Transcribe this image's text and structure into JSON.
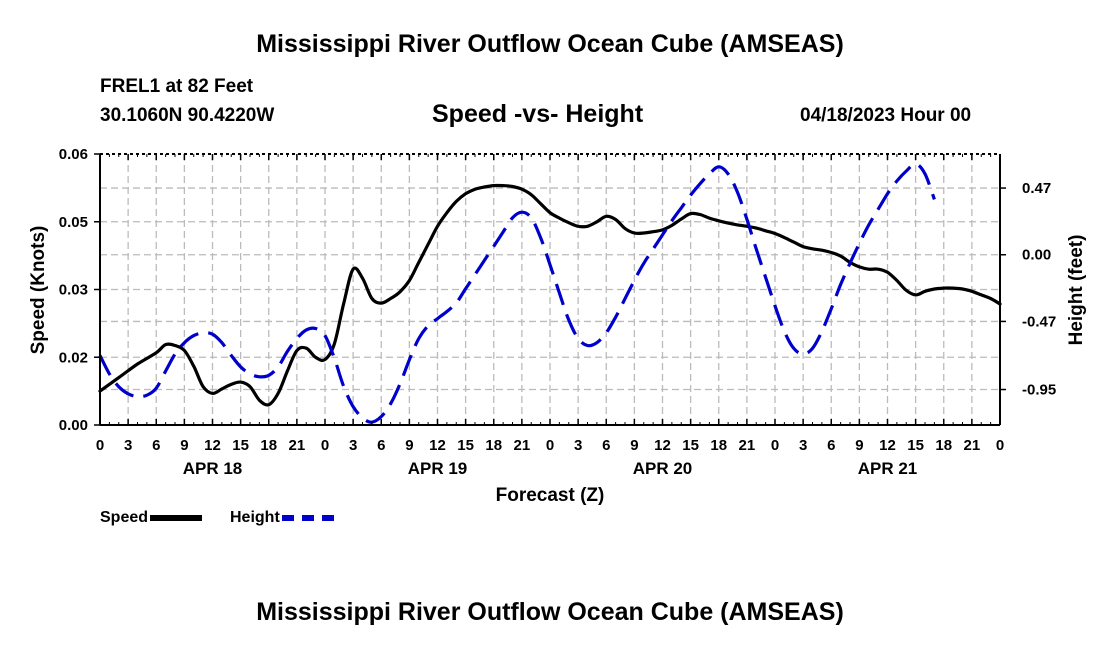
{
  "header": {
    "title": "Mississippi River Outflow Ocean Cube (AMSEAS)",
    "station": "FREL1 at 82 Feet",
    "coords": "30.1060N  90.4220W",
    "subtitle": "Speed -vs- Height",
    "datetime": "04/18/2023 Hour 00"
  },
  "footer": {
    "title": "Mississippi River Outflow Ocean Cube (AMSEAS)"
  },
  "colors": {
    "speed": "#000000",
    "height": "#0000cc",
    "grid": "#bbbbbb"
  },
  "legend": [
    {
      "label": "Speed",
      "color": "#000000"
    },
    {
      "label": "Height",
      "color": "#0000cc"
    }
  ],
  "chart_data": {
    "type": "line",
    "title": "Speed -vs- Height",
    "xlabel": "Forecast (Z)",
    "ylabel_left": "Speed (Knots)",
    "ylabel_right": "Height (feet)",
    "x_range_hours": [
      0,
      96
    ],
    "x_tick_step_hours": 3,
    "x_tick_labels": [
      "0",
      "3",
      "6",
      "9",
      "12",
      "15",
      "18",
      "21",
      "0",
      "3",
      "6",
      "9",
      "12",
      "15",
      "18",
      "21",
      "0",
      "3",
      "6",
      "9",
      "12",
      "15",
      "18",
      "21",
      "0",
      "3",
      "6",
      "9",
      "12",
      "15",
      "18",
      "21",
      "0"
    ],
    "day_labels": [
      {
        "label": "APR 18",
        "hour": 12
      },
      {
        "label": "APR 19",
        "hour": 36
      },
      {
        "label": "APR 20",
        "hour": 60
      },
      {
        "label": "APR 21",
        "hour": 84
      }
    ],
    "left_axis": {
      "range": [
        0,
        0.06
      ],
      "ticks": [
        0,
        0.015,
        0.03,
        0.045,
        0.06
      ],
      "tick_labels": [
        "0.00",
        "0.02",
        "0.03",
        "0.05",
        "0.06"
      ]
    },
    "right_axis": {
      "range": [
        -1.2,
        0.71
      ],
      "ticks": [
        -0.95,
        -0.47,
        0.0,
        0.47
      ],
      "tick_labels": [
        "-0.95",
        "-0.47",
        "0.00",
        "0.47"
      ]
    },
    "series": [
      {
        "name": "Speed",
        "axis": "left",
        "style": "solid",
        "points": [
          [
            0,
            0.0075
          ],
          [
            2,
            0.0105
          ],
          [
            4,
            0.0135
          ],
          [
            6,
            0.016
          ],
          [
            7,
            0.0178
          ],
          [
            8,
            0.0176
          ],
          [
            9,
            0.0165
          ],
          [
            10,
            0.013
          ],
          [
            11,
            0.0085
          ],
          [
            12,
            0.007
          ],
          [
            13,
            0.008
          ],
          [
            14,
            0.009
          ],
          [
            15,
            0.0095
          ],
          [
            16,
            0.0085
          ],
          [
            17,
            0.0055
          ],
          [
            18,
            0.0045
          ],
          [
            19,
            0.007
          ],
          [
            20,
            0.012
          ],
          [
            21,
            0.0165
          ],
          [
            22,
            0.017
          ],
          [
            23,
            0.015
          ],
          [
            24,
            0.0145
          ],
          [
            25,
            0.018
          ],
          [
            26,
            0.027
          ],
          [
            27,
            0.0345
          ],
          [
            28,
            0.0325
          ],
          [
            29,
            0.028
          ],
          [
            30,
            0.027
          ],
          [
            31,
            0.028
          ],
          [
            32,
            0.0295
          ],
          [
            33,
            0.032
          ],
          [
            34,
            0.036
          ],
          [
            35,
            0.04
          ],
          [
            36,
            0.044
          ],
          [
            37,
            0.047
          ],
          [
            38,
            0.0495
          ],
          [
            39,
            0.0512
          ],
          [
            40,
            0.0522
          ],
          [
            41,
            0.0527
          ],
          [
            42,
            0.053
          ],
          [
            43,
            0.053
          ],
          [
            44,
            0.0528
          ],
          [
            45,
            0.0522
          ],
          [
            46,
            0.051
          ],
          [
            47,
            0.049
          ],
          [
            48,
            0.047
          ],
          [
            49,
            0.0458
          ],
          [
            50,
            0.0448
          ],
          [
            51,
            0.044
          ],
          [
            52,
            0.044
          ],
          [
            53,
            0.045
          ],
          [
            54,
            0.0462
          ],
          [
            55,
            0.0455
          ],
          [
            56,
            0.0435
          ],
          [
            57,
            0.0425
          ],
          [
            58,
            0.0425
          ],
          [
            59,
            0.0428
          ],
          [
            60,
            0.0432
          ],
          [
            61,
            0.0442
          ],
          [
            62,
            0.0456
          ],
          [
            63,
            0.0468
          ],
          [
            64,
            0.0466
          ],
          [
            65,
            0.0458
          ],
          [
            66,
            0.0452
          ],
          [
            67,
            0.0447
          ],
          [
            68,
            0.0443
          ],
          [
            69,
            0.044
          ],
          [
            70,
            0.0436
          ],
          [
            71,
            0.043
          ],
          [
            72,
            0.0424
          ],
          [
            73,
            0.0415
          ],
          [
            74,
            0.0405
          ],
          [
            75,
            0.0395
          ],
          [
            76,
            0.039
          ],
          [
            77,
            0.0387
          ],
          [
            78,
            0.0382
          ],
          [
            79,
            0.0374
          ],
          [
            80,
            0.036
          ],
          [
            81,
            0.035
          ],
          [
            82,
            0.0345
          ],
          [
            83,
            0.0345
          ],
          [
            84,
            0.0338
          ],
          [
            85,
            0.032
          ],
          [
            86,
            0.0298
          ],
          [
            87,
            0.0288
          ],
          [
            88,
            0.0296
          ],
          [
            89,
            0.0301
          ],
          [
            90,
            0.0303
          ],
          [
            91,
            0.0303
          ],
          [
            92,
            0.0301
          ],
          [
            93,
            0.0296
          ],
          [
            94,
            0.0288
          ],
          [
            95,
            0.028
          ],
          [
            96,
            0.0268
          ]
        ]
      },
      {
        "name": "Height",
        "axis": "right",
        "style": "dashed",
        "points": [
          [
            0,
            -0.71
          ],
          [
            1,
            -0.84
          ],
          [
            2,
            -0.93
          ],
          [
            3,
            -0.98
          ],
          [
            4,
            -1.0
          ],
          [
            5,
            -0.99
          ],
          [
            6,
            -0.94
          ],
          [
            7,
            -0.82
          ],
          [
            8,
            -0.7
          ],
          [
            9,
            -0.62
          ],
          [
            10,
            -0.57
          ],
          [
            11,
            -0.55
          ],
          [
            12,
            -0.56
          ],
          [
            13,
            -0.62
          ],
          [
            14,
            -0.71
          ],
          [
            15,
            -0.79
          ],
          [
            16,
            -0.84
          ],
          [
            17,
            -0.86
          ],
          [
            18,
            -0.85
          ],
          [
            19,
            -0.79
          ],
          [
            20,
            -0.68
          ],
          [
            21,
            -0.59
          ],
          [
            22,
            -0.53
          ],
          [
            23,
            -0.52
          ],
          [
            24,
            -0.57
          ],
          [
            25,
            -0.73
          ],
          [
            26,
            -0.93
          ],
          [
            27,
            -1.07
          ],
          [
            28,
            -1.15
          ],
          [
            29,
            -1.18
          ],
          [
            30,
            -1.14
          ],
          [
            31,
            -1.05
          ],
          [
            32,
            -0.91
          ],
          [
            33,
            -0.74
          ],
          [
            34,
            -0.59
          ],
          [
            35,
            -0.5
          ],
          [
            36,
            -0.45
          ],
          [
            37,
            -0.4
          ],
          [
            38,
            -0.34
          ],
          [
            39,
            -0.24
          ],
          [
            40,
            -0.14
          ],
          [
            41,
            -0.04
          ],
          [
            42,
            0.06
          ],
          [
            43,
            0.16
          ],
          [
            44,
            0.26
          ],
          [
            45,
            0.3
          ],
          [
            46,
            0.26
          ],
          [
            47,
            0.12
          ],
          [
            48,
            -0.07
          ],
          [
            49,
            -0.27
          ],
          [
            50,
            -0.46
          ],
          [
            51,
            -0.59
          ],
          [
            52,
            -0.64
          ],
          [
            53,
            -0.62
          ],
          [
            54,
            -0.55
          ],
          [
            55,
            -0.44
          ],
          [
            56,
            -0.31
          ],
          [
            57,
            -0.18
          ],
          [
            58,
            -0.06
          ],
          [
            59,
            0.04
          ],
          [
            60,
            0.14
          ],
          [
            61,
            0.24
          ],
          [
            62,
            0.33
          ],
          [
            63,
            0.42
          ],
          [
            64,
            0.5
          ],
          [
            65,
            0.57
          ],
          [
            66,
            0.62
          ],
          [
            67,
            0.57
          ],
          [
            68,
            0.44
          ],
          [
            69,
            0.25
          ],
          [
            70,
            0.04
          ],
          [
            71,
            -0.16
          ],
          [
            72,
            -0.36
          ],
          [
            73,
            -0.54
          ],
          [
            74,
            -0.66
          ],
          [
            75,
            -0.7
          ],
          [
            76,
            -0.66
          ],
          [
            77,
            -0.54
          ],
          [
            78,
            -0.38
          ],
          [
            79,
            -0.21
          ],
          [
            80,
            -0.06
          ],
          [
            81,
            0.08
          ],
          [
            82,
            0.21
          ],
          [
            83,
            0.32
          ],
          [
            84,
            0.43
          ],
          [
            85,
            0.52
          ],
          [
            86,
            0.59
          ],
          [
            87,
            0.64
          ],
          [
            88,
            0.57
          ],
          [
            89,
            0.39
          ]
        ]
      }
    ]
  }
}
